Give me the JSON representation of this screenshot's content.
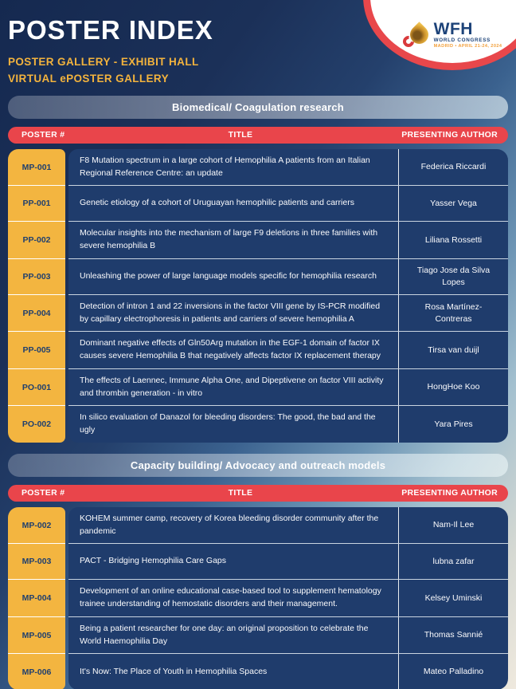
{
  "header": {
    "title": "POSTER INDEX",
    "subtitle1": "POSTER GALLERY - EXHIBIT HALL",
    "subtitle2": "VIRTUAL ePOSTER GALLERY",
    "logo": {
      "org": "WFH",
      "event": "WORLD CONGRESS",
      "location_date": "MADRID • APRIL 21-24, 2024",
      "icon": "wfh-drop-logo-icon"
    }
  },
  "columns": {
    "poster": "POSTER #",
    "title": "TITLE",
    "author": "PRESENTING AUTHOR"
  },
  "sections": [
    {
      "heading": "Biomedical/ Coagulation research",
      "rows": [
        {
          "poster": "MP-001",
          "title": "F8 Mutation spectrum in a large cohort of Hemophilia A patients from an Italian Regional Reference Centre: an update",
          "author": "Federica Riccardi"
        },
        {
          "poster": "PP-001",
          "title": "Genetic etiology of a cohort of Uruguayan hemophilic patients and carriers",
          "author": "Yasser Vega"
        },
        {
          "poster": "PP-002",
          "title": "Molecular insights into the mechanism of large F9 deletions in three families with severe hemophilia B",
          "author": "Liliana Rossetti"
        },
        {
          "poster": "PP-003",
          "title": "Unleashing the power of large language models specific for hemophilia research",
          "author": "Tiago Jose da Silva Lopes"
        },
        {
          "poster": "PP-004",
          "title": "Detection of intron 1 and 22 inversions in the factor VIII gene by IS-PCR modified by capillary electrophoresis in patients and carriers of severe hemophilia A",
          "author": "Rosa Martínez-Contreras"
        },
        {
          "poster": "PP-005",
          "title": "Dominant negative effects of Gln50Arg mutation in the EGF-1 domain of factor IX causes severe Hemophilia B that negatively affects factor IX replacement therapy",
          "author": "Tirsa van duijl"
        },
        {
          "poster": "PO-001",
          "title": "The effects of Laennec, Immune Alpha One, and Dipeptivene on factor VIII activity and thrombin generation - in vitro",
          "author": "HongHoe Koo"
        },
        {
          "poster": "PO-002",
          "title": "In silico evaluation of Danazol for bleeding disorders: The good, the bad and the ugly",
          "author": "Yara Pires"
        }
      ]
    },
    {
      "heading": "Capacity building/ Advocacy and outreach models",
      "rows": [
        {
          "poster": "MP-002",
          "title": "KOHEM summer camp, recovery of Korea bleeding disorder community after the pandemic",
          "author": "Nam-Il Lee"
        },
        {
          "poster": "MP-003",
          "title": "PACT - Bridging Hemophilia Care Gaps",
          "author": "lubna zafar"
        },
        {
          "poster": "MP-004",
          "title": "Development of an online educational case-based tool to supplement hematology trainee understanding of hemostatic disorders and their management.",
          "author": "Kelsey Uminski"
        },
        {
          "poster": "MP-005",
          "title": "Being a patient researcher for one day: an original proposition to celebrate the World Haemophilia Day",
          "author": "Thomas Sannié"
        },
        {
          "poster": "MP-006",
          "title": "It's Now: The Place of Youth in Hemophilia Spaces",
          "author": "Mateo Palladino"
        }
      ]
    }
  ],
  "colors": {
    "accent_yellow": "#F3B540",
    "accent_red": "#E9454B",
    "row_navy": "#1F3C6C",
    "background_dark": "#152950",
    "background_light": "#EFE9DE",
    "text_white": "#FFFFFF",
    "logo_navy": "#1D4379",
    "logo_orange": "#F2A03C"
  }
}
